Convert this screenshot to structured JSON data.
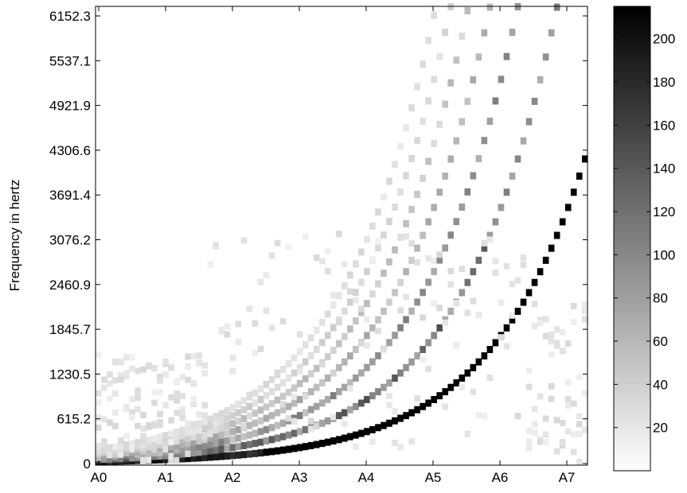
{
  "chart_data": {
    "type": "heatmap",
    "title": "",
    "xlabel": "",
    "ylabel": "Frequency in hertz",
    "x_tick_labels": [
      "A0",
      "A1",
      "A2",
      "A3",
      "A4",
      "A5",
      "A6",
      "A7"
    ],
    "y_tick_labels": [
      "0",
      "615.2",
      "1230.5",
      "1845.7",
      "2460.9",
      "3076.2",
      "3691.4",
      "4306.6",
      "4921.9",
      "5537.1",
      "6152.3"
    ],
    "y_ticks": [
      0,
      615.2,
      1230.5,
      1845.7,
      2460.9,
      3076.2,
      3691.4,
      4306.6,
      4921.9,
      5537.1,
      6152.3
    ],
    "ylim": [
      0,
      6460
    ],
    "x_range_semitones": [
      0,
      87
    ],
    "colormap": "gray-reversed",
    "colorbar": {
      "min": 0,
      "max": 215,
      "tick_labels": [
        "20",
        "40",
        "60",
        "80",
        "100",
        "120",
        "140",
        "160",
        "180",
        "200"
      ],
      "ticks": [
        20,
        40,
        60,
        80,
        100,
        120,
        140,
        160,
        180,
        200
      ]
    },
    "series": [
      {
        "harmonic": 1,
        "intensity_peak": 215
      },
      {
        "harmonic": 2,
        "intensity_peak": 150
      },
      {
        "harmonic": 3,
        "intensity_peak": 110
      },
      {
        "harmonic": 4,
        "intensity_peak": 80
      },
      {
        "harmonic": 5,
        "intensity_peak": 60
      },
      {
        "harmonic": 6,
        "intensity_peak": 45
      },
      {
        "harmonic": 7,
        "intensity_peak": 35
      }
    ]
  }
}
